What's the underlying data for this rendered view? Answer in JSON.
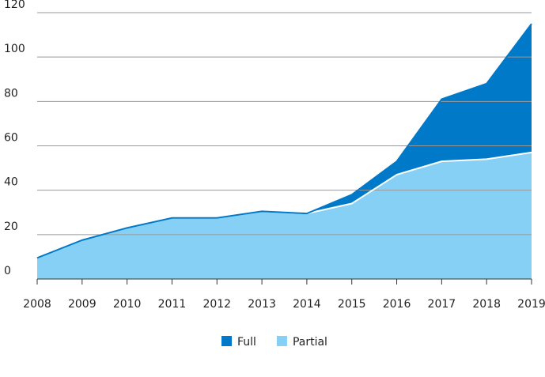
{
  "chart_data": {
    "type": "area",
    "stacked": true,
    "categories": [
      "2008",
      "2009",
      "2010",
      "2011",
      "2012",
      "2013",
      "2014",
      "2015",
      "2016",
      "2017",
      "2018",
      "2019"
    ],
    "series": [
      {
        "name": "Full",
        "color": "#0079c8",
        "values": [
          0,
          0,
          0,
          0,
          0,
          0,
          0,
          4,
          6,
          28,
          34,
          58
        ]
      },
      {
        "name": "Partial",
        "color": "#87d0f5",
        "values": [
          9.5,
          17.5,
          23,
          27.5,
          27.5,
          30.5,
          29.5,
          34,
          47,
          53,
          54,
          57
        ]
      }
    ],
    "ylim": [
      0,
      120
    ],
    "yticks": [
      0,
      20,
      40,
      60,
      80,
      100,
      120
    ],
    "grid": true,
    "legend": "bottom"
  }
}
